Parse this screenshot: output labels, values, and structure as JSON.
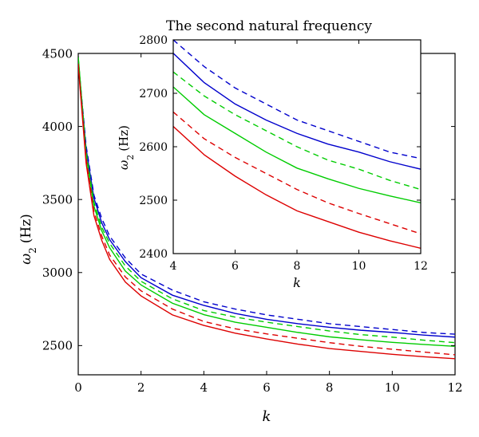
{
  "chart_data": [
    {
      "type": "line",
      "title": "",
      "xlabel": "k",
      "ylabel": "ω2 (Hz)",
      "ylabel_symbol": "ω",
      "ylabel_sub": "2",
      "ylabel_unit": "(Hz)",
      "xlim": [
        0,
        12
      ],
      "ylim": [
        2300,
        4500
      ],
      "xticks": [
        0,
        2,
        4,
        6,
        8,
        10,
        12
      ],
      "yticks": [
        2500,
        3000,
        3500,
        4000,
        4500
      ],
      "grid": false,
      "x": [
        0,
        0.25,
        0.5,
        0.75,
        1,
        1.5,
        2,
        3,
        4,
        5,
        6,
        7,
        8,
        9,
        10,
        11,
        12
      ],
      "series": [
        {
          "color": "#0000cc",
          "dash": "dashed",
          "values": [
            4450,
            3870,
            3530,
            3370,
            3250,
            3100,
            2990,
            2880,
            2800,
            2750,
            2710,
            2680,
            2650,
            2630,
            2610,
            2590,
            2578
          ]
        },
        {
          "color": "#0000cc",
          "dash": "solid",
          "values": [
            4440,
            3850,
            3510,
            3340,
            3225,
            3075,
            2965,
            2845,
            2775,
            2720,
            2680,
            2650,
            2625,
            2605,
            2590,
            2572,
            2558
          ]
        },
        {
          "color": "#00cc00",
          "dash": "dashed",
          "values": [
            4470,
            3830,
            3480,
            3310,
            3200,
            3045,
            2940,
            2820,
            2740,
            2695,
            2660,
            2630,
            2600,
            2575,
            2558,
            2537,
            2520
          ]
        },
        {
          "color": "#00cc00",
          "dash": "solid",
          "values": [
            4480,
            3800,
            3455,
            3285,
            3170,
            3010,
            2915,
            2790,
            2712,
            2660,
            2625,
            2590,
            2560,
            2540,
            2522,
            2508,
            2495
          ]
        },
        {
          "color": "#dd0000",
          "dash": "dashed",
          "values": [
            4430,
            3780,
            3420,
            3250,
            3120,
            2970,
            2875,
            2750,
            2665,
            2615,
            2580,
            2550,
            2520,
            2495,
            2475,
            2456,
            2437
          ]
        },
        {
          "color": "#dd0000",
          "dash": "solid",
          "values": [
            4420,
            3750,
            3390,
            3220,
            3090,
            2935,
            2840,
            2710,
            2638,
            2585,
            2545,
            2510,
            2480,
            2460,
            2440,
            2424,
            2410
          ]
        }
      ]
    },
    {
      "type": "line",
      "title": "The second natural frequency",
      "xlabel": "k",
      "ylabel": "ω2 (Hz)",
      "ylabel_symbol": "ω",
      "ylabel_sub": "2",
      "ylabel_unit": "(Hz)",
      "xlim": [
        4,
        12
      ],
      "ylim": [
        2400,
        2800
      ],
      "xticks": [
        4,
        6,
        8,
        10,
        12
      ],
      "yticks": [
        2400,
        2500,
        2600,
        2700,
        2800
      ],
      "grid": false,
      "x": [
        4,
        5,
        6,
        7,
        8,
        9,
        10,
        11,
        12
      ],
      "series": [
        {
          "color": "#0000cc",
          "dash": "dashed",
          "values": [
            2800,
            2750,
            2710,
            2680,
            2650,
            2630,
            2610,
            2590,
            2578
          ]
        },
        {
          "color": "#0000cc",
          "dash": "solid",
          "values": [
            2775,
            2720,
            2680,
            2650,
            2625,
            2605,
            2590,
            2572,
            2558
          ]
        },
        {
          "color": "#00cc00",
          "dash": "dashed",
          "values": [
            2740,
            2695,
            2660,
            2630,
            2600,
            2575,
            2558,
            2537,
            2520
          ]
        },
        {
          "color": "#00cc00",
          "dash": "solid",
          "values": [
            2712,
            2660,
            2625,
            2590,
            2560,
            2540,
            2522,
            2508,
            2495
          ]
        },
        {
          "color": "#dd0000",
          "dash": "dashed",
          "values": [
            2665,
            2615,
            2580,
            2550,
            2520,
            2495,
            2475,
            2456,
            2437
          ]
        },
        {
          "color": "#dd0000",
          "dash": "solid",
          "values": [
            2638,
            2585,
            2545,
            2510,
            2480,
            2460,
            2440,
            2424,
            2410
          ]
        }
      ]
    }
  ]
}
